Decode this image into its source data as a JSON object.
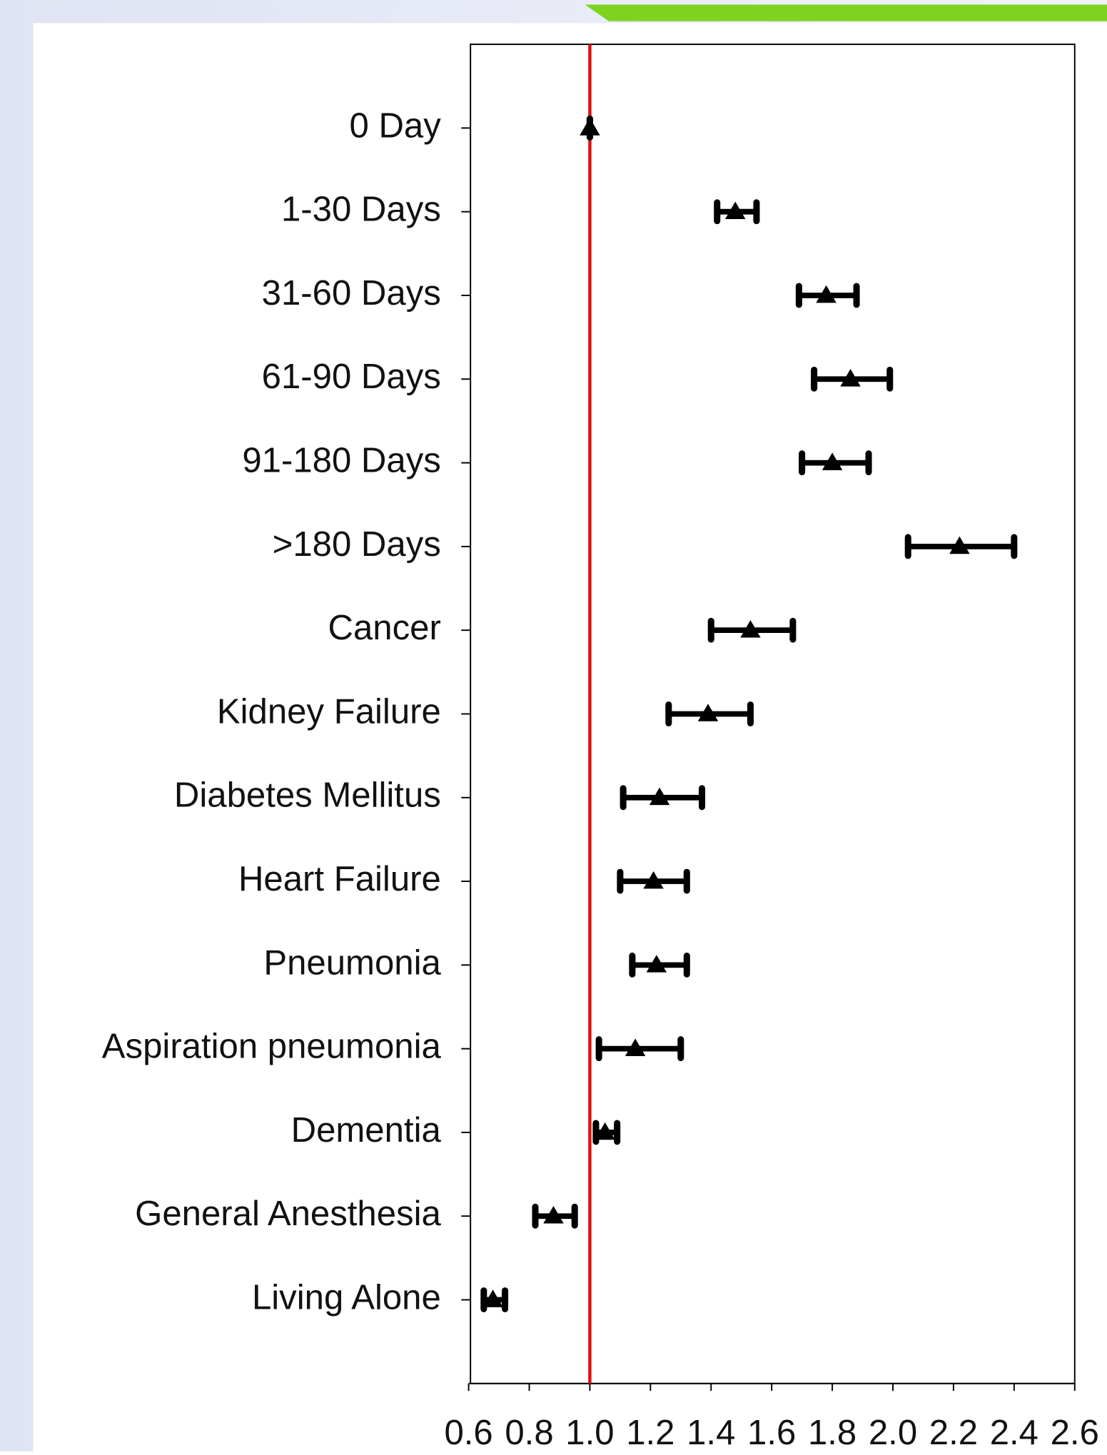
{
  "chart_data": {
    "type": "forest",
    "categories": [
      "0 Day",
      "1-30 Days",
      "31-60 Days",
      "61-90 Days",
      "91-180 Days",
      ">180 Days",
      "Cancer",
      "Kidney Failure",
      "Diabetes Mellitus",
      "Heart Failure",
      "Pneumonia",
      "Aspiration pneumonia",
      "Dementia",
      "General Anesthesia",
      "Living Alone"
    ],
    "values": [
      1.0,
      1.48,
      1.78,
      1.86,
      1.8,
      2.22,
      1.53,
      1.39,
      1.23,
      1.21,
      1.22,
      1.15,
      1.05,
      0.88,
      0.68
    ],
    "lower": [
      1.0,
      1.42,
      1.69,
      1.74,
      1.7,
      2.05,
      1.4,
      1.26,
      1.11,
      1.1,
      1.14,
      1.03,
      1.02,
      0.82,
      0.65
    ],
    "upper": [
      1.0,
      1.55,
      1.88,
      1.99,
      1.92,
      2.4,
      1.67,
      1.53,
      1.37,
      1.32,
      1.32,
      1.3,
      1.09,
      0.95,
      0.72
    ],
    "color": "#000000",
    "reference_line": 1,
    "reference_color": "#e01010",
    "xlim": [
      0.6,
      2.6
    ],
    "xticks": [
      0.6,
      0.8,
      {
        "value": 1,
        "label": "1.0"
      },
      1.2,
      1.4,
      1.6,
      1.8,
      {
        "value": 2,
        "label": "2.0"
      },
      2.2,
      2.4,
      2.6
    ]
  }
}
